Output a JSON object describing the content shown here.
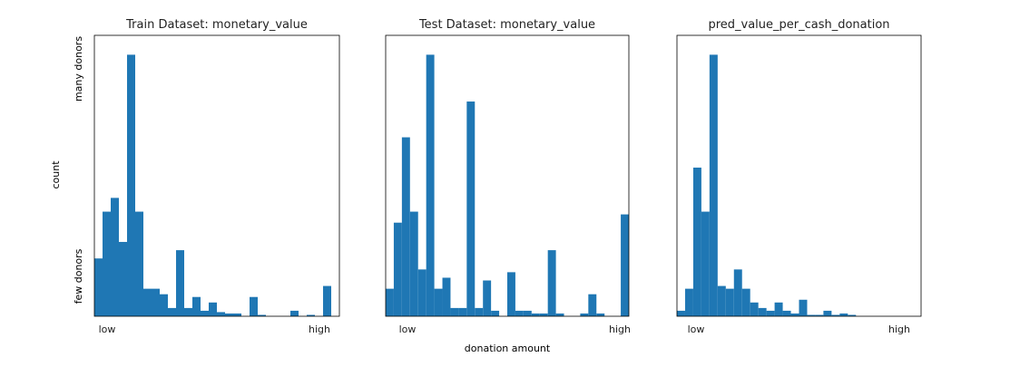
{
  "figure": {
    "ylabel": "count",
    "xlabel": "donation amount",
    "y_high_label": "many donors",
    "y_low_label": "few donors"
  },
  "chart_data": [
    {
      "type": "bar",
      "title": "Train Dataset: monetary_value",
      "x_tick_low": "low",
      "x_tick_high": "high",
      "bins": 30,
      "ylim": [
        0,
        100
      ],
      "values": [
        21,
        38,
        43,
        27,
        95,
        38,
        10,
        10,
        8,
        3,
        24,
        3,
        7,
        2,
        5,
        1.5,
        1,
        1,
        0,
        7,
        0.5,
        0,
        0,
        0,
        2,
        0,
        0.5,
        0,
        11,
        0
      ],
      "color": "#1f77b4"
    },
    {
      "type": "bar",
      "title": "Test Dataset: monetary_value",
      "x_tick_low": "low",
      "x_tick_high": "high",
      "bins": 30,
      "ylim": [
        0,
        100
      ],
      "values": [
        10,
        34,
        65,
        38,
        17,
        95,
        10,
        14,
        3,
        3,
        78,
        3,
        13,
        2,
        0,
        16,
        2,
        2,
        1,
        1,
        24,
        1,
        0,
        0,
        1,
        8,
        1,
        0,
        0,
        37
      ],
      "color": "#1f77b4"
    },
    {
      "type": "bar",
      "title": "pred_value_per_cash_donation",
      "x_tick_low": "low",
      "x_tick_high": "high",
      "bins": 30,
      "ylim": [
        0,
        100
      ],
      "values": [
        2,
        10,
        54,
        38,
        95,
        11,
        10,
        17,
        10,
        5,
        3,
        2,
        5,
        2,
        1,
        6,
        0.5,
        0.5,
        2,
        0.5,
        1,
        0.5,
        0,
        0,
        0,
        0,
        0,
        0,
        0,
        0
      ],
      "color": "#1f77b4"
    }
  ]
}
